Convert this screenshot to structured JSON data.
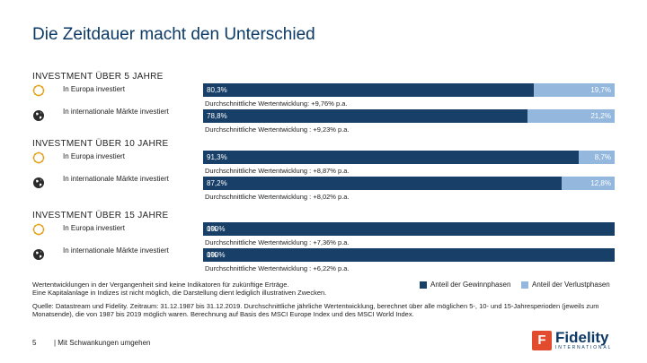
{
  "title": "Die Zeitdauer macht den Unterschied",
  "sections": [
    {
      "heading": "INVESTMENT ÜBER 5 JAHRE",
      "rows": [
        {
          "label": "In Europa investiert",
          "icon": "europe-coin-icon",
          "gain": 80.3,
          "gain_label": "80,3%",
          "loss_label": "19,7%",
          "avg": "Durchschnittliche Wertentwicklung: +9,76% p.a."
        },
        {
          "label": "In internationale Märkte investiert",
          "icon": "globe-icon",
          "gain": 78.8,
          "gain_label": "78,8%",
          "loss_label": "21,2%",
          "avg": "Durchschnittliche Wertentwicklung : +9,23% p.a."
        }
      ]
    },
    {
      "heading": "INVESTMENT ÜBER 10 JAHRE",
      "rows": [
        {
          "label": "In Europa investiert",
          "icon": "europe-coin-icon",
          "gain": 91.3,
          "gain_label": "91,3%",
          "loss_label": "8,7%",
          "avg": "Durchschnittliche Wertentwicklung : +8,87% p.a."
        },
        {
          "label": "In internationale Märkte investiert",
          "icon": "globe-icon",
          "gain": 87.2,
          "gain_label": "87,2%",
          "loss_label": "12,8%",
          "avg": "Durchschnittliche Wertentwicklung : +8,02% p.a."
        }
      ]
    },
    {
      "heading": "INVESTMENT ÜBER 15 JAHRE",
      "rows": [
        {
          "label": "In Europa investiert",
          "icon": "europe-coin-icon",
          "gain": 100,
          "gain_label": "100%",
          "loss_label": "0%",
          "avg": "Durchschnittliche Wertentwicklung : +7,36% p.a."
        },
        {
          "label": "In internationale Märkte investiert",
          "icon": "globe-icon",
          "gain": 100,
          "gain_label": "100%",
          "loss_label": "0%",
          "avg": "Durchschnittliche Wertentwicklung : +6,22% p.a."
        }
      ]
    }
  ],
  "legend": {
    "gain": "Anteil der Gewinnphasen",
    "loss": "Anteil der Verlustphasen"
  },
  "footnote_line1": "Wertentwicklungen in der Vergangenheit sind keine Indikatoren für zukünftige Erträge.",
  "footnote_line2": "Eine Kapitalanlage in Indizes ist nicht möglich, die Darstellung dient lediglich illustrativen Zwecken.",
  "source": "Quelle: Datastream und Fidelity. Zeitraum: 31.12.1987 bis 31.12.2019. Durchschnittliche jährliche Wertentwicklung, berechnet über alle möglichen 5-, 10- und 15-Jahresperioden (jeweils zum Monatsende), die von 1987 bis 2019 möglich waren. Berechnung auf Basis des MSCI Europe Index und des MSCI World Index.",
  "page_number": "5",
  "page_title": "| Mit Schwankungen umgehen",
  "logo": {
    "mark": "F",
    "word": "Fidelity",
    "sub": "INTERNATIONAL"
  },
  "colors": {
    "gain": "#173f68",
    "loss": "#93b7dd"
  },
  "chart_data": {
    "type": "bar",
    "orientation": "horizontal-stacked-100",
    "categories": [
      "5 Jahre – In Europa investiert",
      "5 Jahre – In internationale Märkte investiert",
      "10 Jahre – In Europa investiert",
      "10 Jahre – In internationale Märkte investiert",
      "15 Jahre – In Europa investiert",
      "15 Jahre – In internationale Märkte investiert"
    ],
    "series": [
      {
        "name": "Anteil der Gewinnphasen",
        "values": [
          80.3,
          78.8,
          91.3,
          87.2,
          100,
          100
        ]
      },
      {
        "name": "Anteil der Verlustphasen",
        "values": [
          19.7,
          21.2,
          8.7,
          12.8,
          0,
          0
        ]
      }
    ],
    "title": "Die Zeitdauer macht den Unterschied",
    "legend": "bottom-right"
  }
}
